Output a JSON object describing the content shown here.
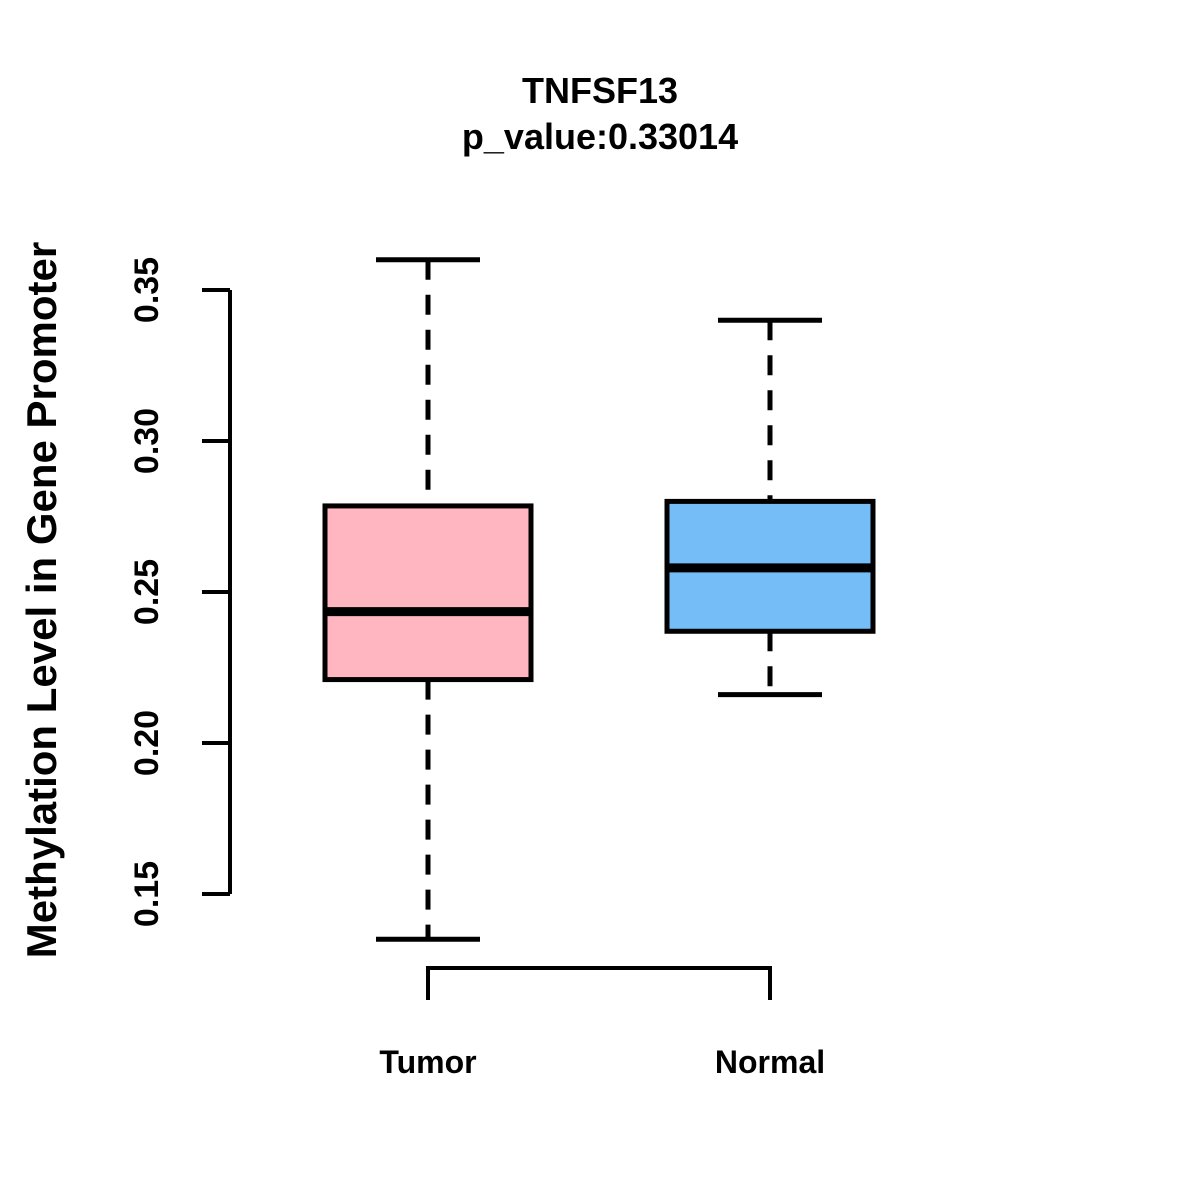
{
  "figure": {
    "background": "#FFFFFF"
  },
  "chart_data": {
    "type": "boxplot",
    "title": "TNFSF13",
    "subtitle": "p_value:0.33014",
    "ylabel": "Methylation Level in Gene Promoter",
    "xlabel": "",
    "categories": [
      "Tumor",
      "Normal"
    ],
    "ylim": [
      0.15,
      0.35
    ],
    "yticks": [
      "0.15",
      "0.20",
      "0.25",
      "0.30",
      "0.35"
    ],
    "grid": false,
    "legend": false,
    "series": [
      {
        "name": "Tumor",
        "fill_color": "#FFB6C1",
        "whisker_low": 0.135,
        "q1": 0.221,
        "median": 0.2435,
        "q3": 0.2785,
        "whisker_high": 0.36,
        "outliers": []
      },
      {
        "name": "Normal",
        "fill_color": "#74BDF7",
        "whisker_low": 0.216,
        "q1": 0.237,
        "median": 0.258,
        "q3": 0.28,
        "whisker_high": 0.34,
        "outliers": []
      }
    ]
  },
  "colors": {
    "stroke": "#000000",
    "background": "#FFFFFF",
    "tumor_fill": "#FFB6C1",
    "normal_fill": "#74BDF7"
  }
}
